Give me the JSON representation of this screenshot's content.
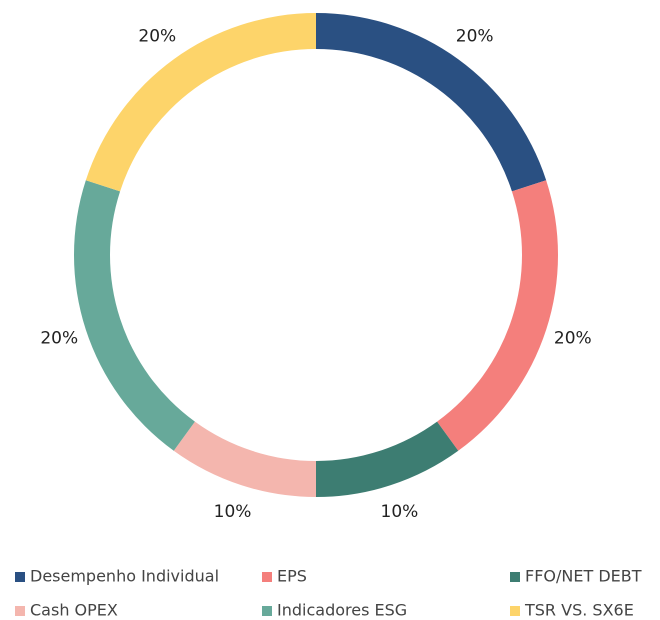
{
  "chart_data": {
    "type": "donut",
    "categories": [
      "Desempenho Individual",
      "EPS",
      "FFO/NET DEBT",
      "Cash OPEX",
      "Indicadores ESG",
      "TSR VS. SX6E"
    ],
    "values": [
      20,
      20,
      10,
      10,
      20,
      20
    ],
    "value_labels": [
      "20%",
      "20%",
      "10%",
      "10%",
      "20%",
      "20%"
    ],
    "colors": [
      "#2a5082",
      "#f47f7c",
      "#3d7d72",
      "#f4b6ae",
      "#67a99a",
      "#fdd46a"
    ],
    "legend": "bottom"
  }
}
